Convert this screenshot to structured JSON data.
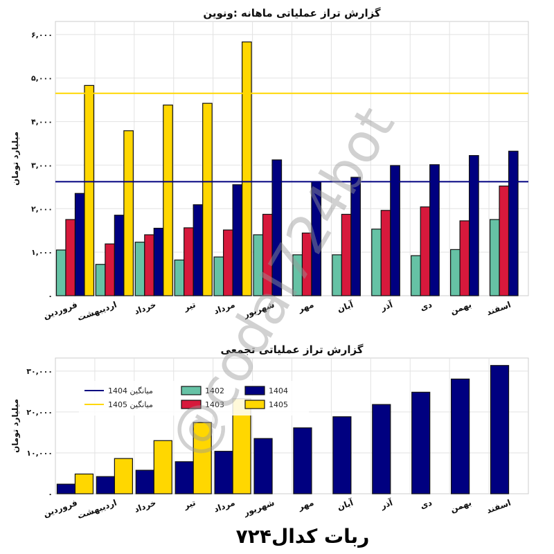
{
  "chart_data": [
    {
      "type": "bar",
      "title": "گزارش تراز عملیاتی ماهانه :ونوین",
      "ylabel": "میلیارد تومان",
      "xlabel": "",
      "ylim": [
        0,
        6300
      ],
      "yticks": [
        0,
        1000,
        2000,
        3000,
        4000,
        5000,
        6000
      ],
      "ytick_labels": [
        "۰",
        "۱,۰۰۰",
        "۲,۰۰۰",
        "۳,۰۰۰",
        "۴,۰۰۰",
        "۵,۰۰۰",
        "۶,۰۰۰"
      ],
      "grid": true,
      "categories": [
        "فروردین",
        "اردیبهشت",
        "خرداد",
        "تیر",
        "مرداد",
        "شهریور",
        "مهر",
        "آبان",
        "آذر",
        "دی",
        "بهمن",
        "اسفند"
      ],
      "series": [
        {
          "name": "1402",
          "color": "#66c2a5",
          "values": [
            1050,
            720,
            1230,
            820,
            890,
            1400,
            940,
            940,
            1530,
            920,
            1060,
            1750
          ]
        },
        {
          "name": "1403",
          "color": "#d7193c",
          "values": [
            1750,
            1190,
            1400,
            1560,
            1510,
            1870,
            1440,
            1870,
            1960,
            2040,
            1720,
            2520
          ]
        },
        {
          "name": "1404",
          "color": "#000080",
          "values": [
            2350,
            1850,
            1550,
            2090,
            2550,
            3120,
            2610,
            2720,
            2990,
            3010,
            3220,
            3320
          ]
        },
        {
          "name": "1405",
          "color": "#ffd700",
          "values": [
            4830,
            3790,
            4380,
            4420,
            5830,
            null,
            null,
            null,
            null,
            null,
            null,
            null
          ]
        }
      ],
      "avg_lines": [
        {
          "name": "میانگین 1404",
          "color": "#000080",
          "value": 2620
        },
        {
          "name": "میانگین 1405",
          "color": "#ffd700",
          "value": 4650
        }
      ]
    },
    {
      "type": "bar",
      "title": "گزارش تراز عملیاتی تجمعی",
      "ylabel": "میلیارد تومان",
      "xlabel": "",
      "ylim": [
        0,
        33200
      ],
      "yticks": [
        0,
        10000,
        20000,
        30000
      ],
      "ytick_labels": [
        "۰",
        "۱۰,۰۰۰",
        "۲۰,۰۰۰",
        "۳۰,۰۰۰"
      ],
      "grid": true,
      "legend": "top-left",
      "legend_entries": [
        {
          "label": "میانگین 1404",
          "kind": "line",
          "color": "#000080"
        },
        {
          "label": "میانگین 1405",
          "kind": "line",
          "color": "#ffd700"
        },
        {
          "label": "1402",
          "kind": "box",
          "color": "#66c2a5"
        },
        {
          "label": "1403",
          "kind": "box",
          "color": "#d7193c"
        },
        {
          "label": "1404",
          "kind": "box",
          "color": "#000080"
        },
        {
          "label": "1405",
          "kind": "box",
          "color": "#ffd700"
        }
      ],
      "categories": [
        "فروردین",
        "اردیبهشت",
        "خرداد",
        "تیر",
        "مرداد",
        "شهریور",
        "مهر",
        "آبان",
        "آذر",
        "دی",
        "بهمن",
        "اسفند"
      ],
      "series": [
        {
          "name": "1404",
          "color": "#000080",
          "values": [
            2350,
            4200,
            5750,
            7840,
            10390,
            13510,
            16120,
            18840,
            21830,
            24840,
            28060,
            31380
          ]
        },
        {
          "name": "1405",
          "color": "#ffd700",
          "values": [
            4830,
            8620,
            13000,
            17420,
            23250,
            null,
            null,
            null,
            null,
            null,
            null,
            null
          ]
        }
      ]
    }
  ],
  "footer": "ربات کدال۷۲۴",
  "watermark": "@codal724bot"
}
